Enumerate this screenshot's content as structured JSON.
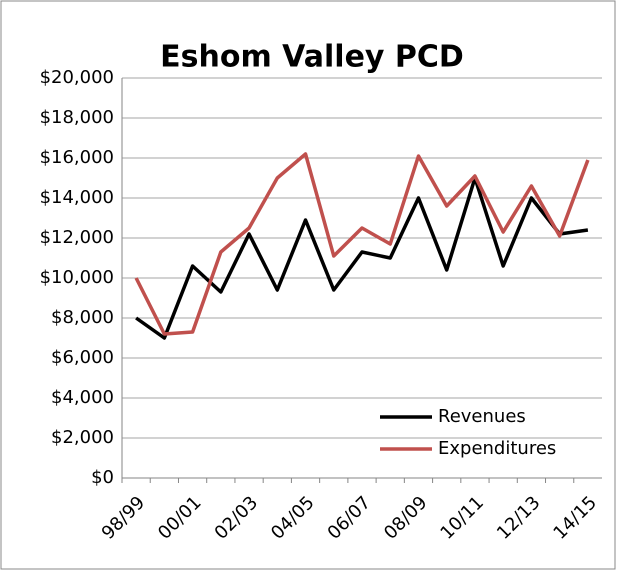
{
  "chart_data": {
    "type": "line",
    "title": "Eshom Valley PCD",
    "categories": [
      "98/99",
      null,
      "00/01",
      null,
      "02/03",
      null,
      "04/05",
      null,
      "06/07",
      null,
      "08/09",
      null,
      "10/11",
      null,
      "12/13",
      null,
      "14/15"
    ],
    "series": [
      {
        "name": "Revenues",
        "color": "#000000",
        "values": [
          8000,
          7000,
          10600,
          9300,
          12200,
          9400,
          12900,
          9400,
          11300,
          11000,
          14000,
          10400,
          15000,
          10600,
          14000,
          12200,
          12400
        ]
      },
      {
        "name": "Expenditures",
        "color": "#c0504d",
        "values": [
          10000,
          7200,
          7300,
          11300,
          12500,
          15000,
          16200,
          11100,
          12500,
          11700,
          16100,
          13600,
          15100,
          12300,
          14600,
          12100,
          15900
        ]
      }
    ],
    "ylim": [
      0,
      20000
    ],
    "yticks": [
      {
        "value": 0,
        "label": "$0"
      },
      {
        "value": 2000,
        "label": "$2,000"
      },
      {
        "value": 4000,
        "label": "$4,000"
      },
      {
        "value": 6000,
        "label": "$6,000"
      },
      {
        "value": 8000,
        "label": "$8,000"
      },
      {
        "value": 10000,
        "label": "$10,000"
      },
      {
        "value": 12000,
        "label": "$12,000"
      },
      {
        "value": 14000,
        "label": "$14,000"
      },
      {
        "value": 16000,
        "label": "$16,000"
      },
      {
        "value": 18000,
        "label": "$18,000"
      },
      {
        "value": 20000,
        "label": "$20,000"
      }
    ],
    "grid": true,
    "legend": "lower right"
  }
}
